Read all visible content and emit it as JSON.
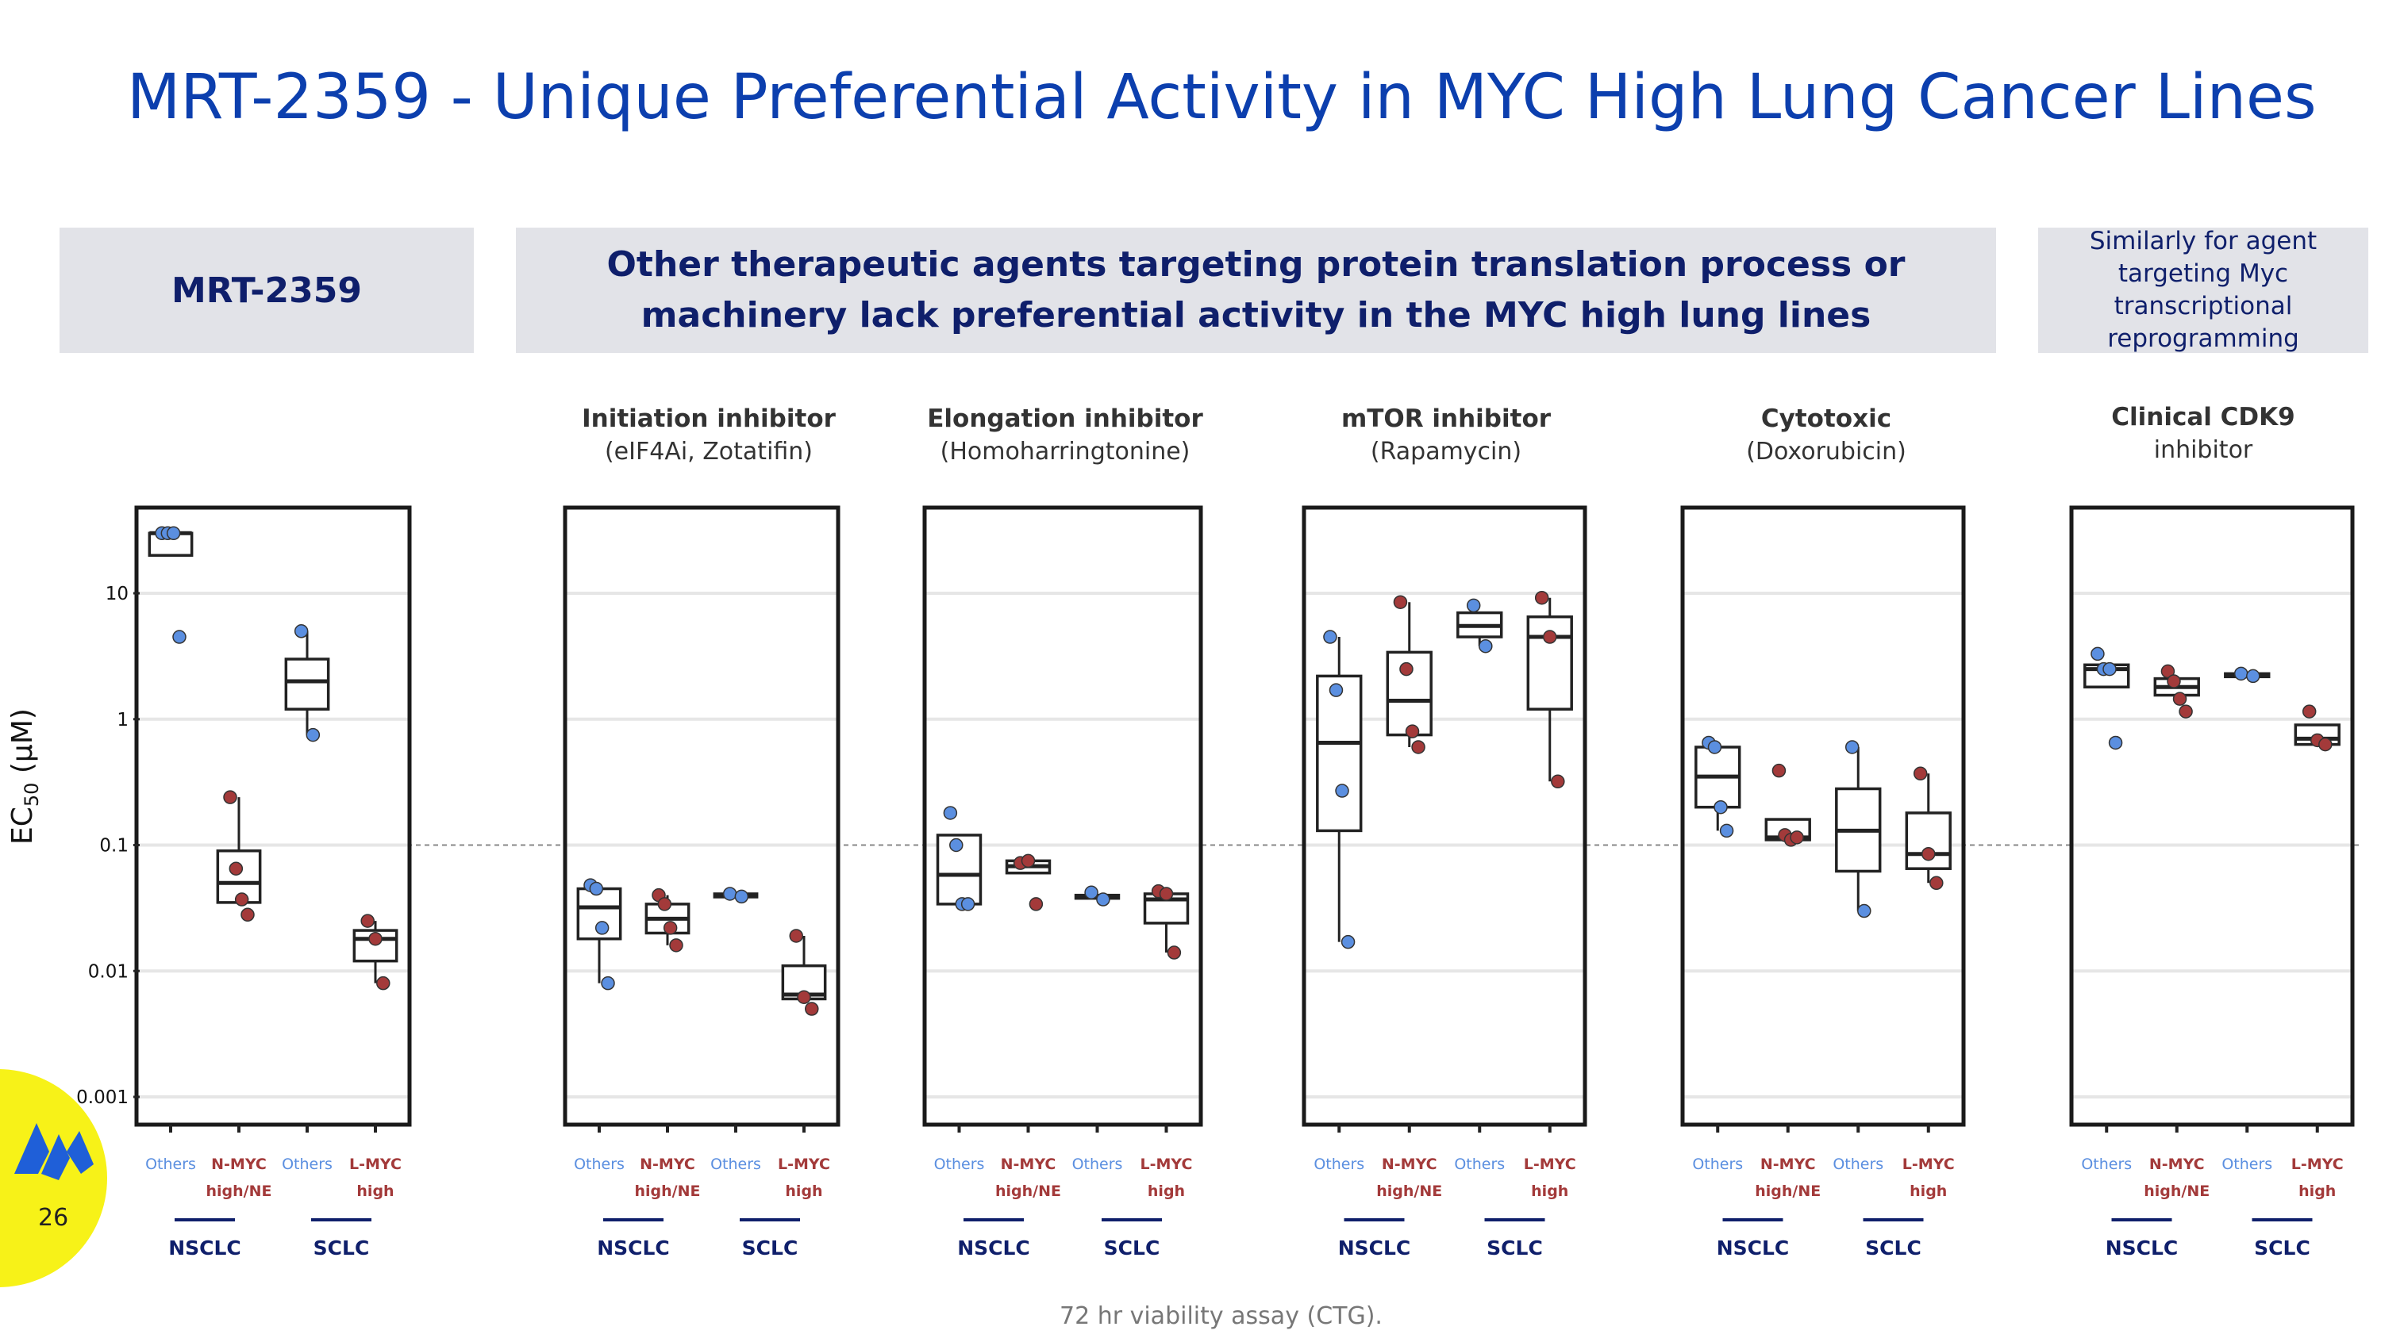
{
  "page": {
    "title": "MRT-2359 - Unique Preferential Activity in MYC High Lung Cancer Lines",
    "page_number": "26",
    "footnote": "72 hr viability assay (CTG).",
    "banners": {
      "mrt": "MRT-2359",
      "other": "Other therapeutic agents targeting protein translation process or machinery lack preferential activity in the MYC high lung lines",
      "myc": "Similarly for agent targeting Myc transcriptional reprogramming"
    },
    "panel_titles": [
      {
        "t1": "Initiation inhibitor",
        "t2": "(eIF4Ai, Zotatifin)"
      },
      {
        "t1": "Elongation inhibitor",
        "t2": "(Homoharringtonine)"
      },
      {
        "t1": "mTOR inhibitor",
        "t2": "(Rapamycin)"
      },
      {
        "t1": "Cytotoxic",
        "t2": "(Doxorubicin)"
      },
      {
        "t1": "Clinical CDK9",
        "t2": "inhibitor"
      }
    ],
    "ylabel": "EC",
    "ylabel_sub": "50",
    "ylabel_unit": " (μM)",
    "colors": {
      "others": "#5b8fe0",
      "myc": "#a33a3a",
      "title": "#0c3fae",
      "group": "#0f1f6b"
    },
    "logo_icon": "company-logo-icon"
  },
  "chart_data": {
    "type": "box",
    "yscale": "log",
    "ylim": [
      0.0007,
      60
    ],
    "yticks": [
      10,
      1,
      0.1,
      0.01,
      0.001
    ],
    "ytick_labels": [
      "10",
      "1",
      "0.1",
      "0.01",
      "0.001"
    ],
    "reference_line": 0.1,
    "category_labels": [
      {
        "l1": "Others",
        "l2": "",
        "color": "others"
      },
      {
        "l1": "N-MYC",
        "l2": "high/NE",
        "color": "myc"
      },
      {
        "l1": "Others",
        "l2": "",
        "color": "others"
      },
      {
        "l1": "L-MYC",
        "l2": "high",
        "color": "myc"
      }
    ],
    "groups": [
      "NSCLC",
      "SCLC"
    ],
    "panels": [
      {
        "name": "MRT-2359",
        "boxes": [
          {
            "q1": 20,
            "med": 30,
            "q3": 30,
            "wl": 20,
            "wh": 30,
            "pts": [
              30,
              30,
              30,
              4.5
            ]
          },
          {
            "q1": 0.035,
            "med": 0.05,
            "q3": 0.09,
            "wl": 0.035,
            "wh": 0.24,
            "pts": [
              0.24,
              0.065,
              0.037,
              0.028
            ]
          },
          {
            "q1": 1.2,
            "med": 2,
            "q3": 3,
            "wl": 0.75,
            "wh": 5,
            "pts": [
              5,
              0.75
            ]
          },
          {
            "q1": 0.012,
            "med": 0.018,
            "q3": 0.021,
            "wl": 0.008,
            "wh": 0.025,
            "pts": [
              0.025,
              0.018,
              0.008
            ]
          }
        ]
      },
      {
        "name": "Initiation inhibitor",
        "boxes": [
          {
            "q1": 0.018,
            "med": 0.032,
            "q3": 0.045,
            "wl": 0.008,
            "wh": 0.045,
            "pts": [
              0.048,
              0.045,
              0.022,
              0.008
            ]
          },
          {
            "q1": 0.02,
            "med": 0.026,
            "q3": 0.034,
            "wl": 0.016,
            "wh": 0.04,
            "pts": [
              0.04,
              0.034,
              0.022,
              0.016
            ]
          },
          {
            "q1": 0.039,
            "med": 0.04,
            "q3": 0.041,
            "wl": 0.039,
            "wh": 0.041,
            "pts": [
              0.041,
              0.039
            ]
          },
          {
            "q1": 0.006,
            "med": 0.0065,
            "q3": 0.011,
            "wl": 0.006,
            "wh": 0.019,
            "pts": [
              0.019,
              0.0062,
              0.005
            ]
          }
        ]
      },
      {
        "name": "Elongation inhibitor",
        "boxes": [
          {
            "q1": 0.034,
            "med": 0.058,
            "q3": 0.12,
            "wl": 0.034,
            "wh": 0.12,
            "pts": [
              0.18,
              0.1,
              0.034,
              0.034
            ]
          },
          {
            "q1": 0.06,
            "med": 0.068,
            "q3": 0.075,
            "wl": 0.06,
            "wh": 0.075,
            "pts": [
              0.072,
              0.075,
              0.034
            ]
          },
          {
            "q1": 0.038,
            "med": 0.039,
            "q3": 0.04,
            "wl": 0.038,
            "wh": 0.04,
            "pts": [
              0.042,
              0.037
            ]
          },
          {
            "q1": 0.024,
            "med": 0.037,
            "q3": 0.041,
            "wl": 0.014,
            "wh": 0.041,
            "pts": [
              0.043,
              0.041,
              0.014
            ]
          }
        ]
      },
      {
        "name": "mTOR inhibitor",
        "boxes": [
          {
            "q1": 0.13,
            "med": 0.65,
            "q3": 2.2,
            "wl": 0.017,
            "wh": 4.5,
            "pts": [
              4.5,
              1.7,
              0.27,
              0.017
            ]
          },
          {
            "q1": 0.75,
            "med": 1.4,
            "q3": 3.4,
            "wl": 0.6,
            "wh": 8.5,
            "pts": [
              8.5,
              2.5,
              0.8,
              0.6
            ]
          },
          {
            "q1": 4.5,
            "med": 5.5,
            "q3": 7,
            "wl": 3.8,
            "wh": 7,
            "pts": [
              8,
              3.8
            ]
          },
          {
            "q1": 1.2,
            "med": 4.5,
            "q3": 6.5,
            "wl": 0.32,
            "wh": 9.2,
            "pts": [
              9.2,
              4.5,
              0.32
            ]
          }
        ]
      },
      {
        "name": "Cytotoxic",
        "boxes": [
          {
            "q1": 0.2,
            "med": 0.35,
            "q3": 0.6,
            "wl": 0.13,
            "wh": 0.6,
            "pts": [
              0.65,
              0.6,
              0.2,
              0.13
            ]
          },
          {
            "q1": 0.11,
            "med": 0.115,
            "q3": 0.16,
            "wl": 0.11,
            "wh": 0.16,
            "pts": [
              0.39,
              0.12,
              0.11,
              0.115
            ]
          },
          {
            "q1": 0.062,
            "med": 0.13,
            "q3": 0.28,
            "wl": 0.03,
            "wh": 0.6,
            "pts": [
              0.6,
              0.03
            ]
          },
          {
            "q1": 0.065,
            "med": 0.085,
            "q3": 0.18,
            "wl": 0.05,
            "wh": 0.37,
            "pts": [
              0.37,
              0.085,
              0.05
            ]
          }
        ]
      },
      {
        "name": "Clinical CDK9 inhibitor",
        "boxes": [
          {
            "q1": 1.8,
            "med": 2.5,
            "q3": 2.7,
            "wl": 1.8,
            "wh": 2.7,
            "pts": [
              3.3,
              2.5,
              2.5,
              0.65
            ]
          },
          {
            "q1": 1.55,
            "med": 1.8,
            "q3": 2.1,
            "wl": 1.55,
            "wh": 2.1,
            "pts": [
              2.4,
              2.0,
              1.45,
              1.15
            ]
          },
          {
            "q1": 2.2,
            "med": 2.25,
            "q3": 2.3,
            "wl": 2.2,
            "wh": 2.3,
            "pts": [
              2.3,
              2.2
            ]
          },
          {
            "q1": 0.63,
            "med": 0.7,
            "q3": 0.9,
            "wl": 0.63,
            "wh": 0.9,
            "pts": [
              1.15,
              0.68,
              0.63
            ]
          }
        ]
      }
    ]
  }
}
